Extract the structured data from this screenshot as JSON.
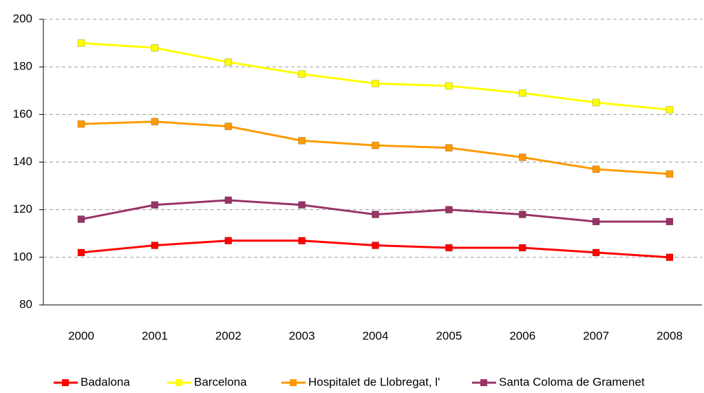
{
  "chart_data": {
    "type": "line",
    "categories": [
      "2000",
      "2001",
      "2002",
      "2003",
      "2004",
      "2005",
      "2006",
      "2007",
      "2008"
    ],
    "series": [
      {
        "name": "Badalona",
        "color": "#ff0000",
        "values": [
          102,
          105,
          107,
          107,
          105,
          104,
          104,
          102,
          100
        ]
      },
      {
        "name": "Barcelona",
        "color": "#ffff00",
        "values": [
          190,
          188,
          182,
          177,
          173,
          172,
          169,
          165,
          162
        ]
      },
      {
        "name": "Hospitalet de Llobregat, l'",
        "color": "#ff9900",
        "values": [
          156,
          157,
          155,
          149,
          147,
          146,
          142,
          137,
          135
        ]
      },
      {
        "name": "Santa Coloma de Gramenet",
        "color": "#993366",
        "values": [
          116,
          122,
          124,
          122,
          118,
          120,
          118,
          115,
          115
        ]
      }
    ],
    "ylim": [
      80,
      200
    ],
    "yticks": [
      80,
      100,
      120,
      140,
      160,
      180,
      200
    ],
    "grid": true,
    "legend": "bottom"
  }
}
